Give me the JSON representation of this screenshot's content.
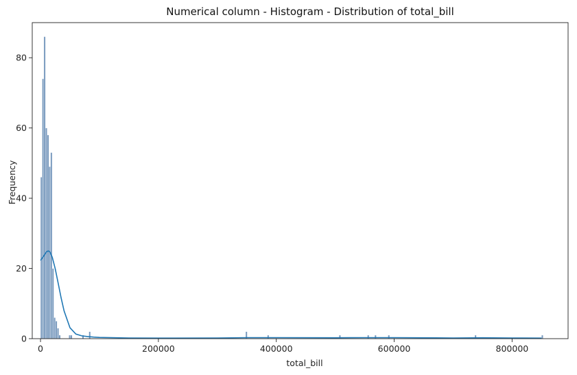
{
  "chart_data": {
    "type": "bar",
    "title": "Numerical column - Histogram - Distribution of total_bill",
    "xlabel": "total_bill",
    "ylabel": "Frequency",
    "xlim": [
      -14000,
      895000
    ],
    "ylim": [
      0,
      90
    ],
    "xticks": [
      0,
      200000,
      400000,
      600000,
      800000
    ],
    "xtick_labels": [
      "0",
      "200000",
      "400000",
      "600000",
      "800000"
    ],
    "yticks": [
      0,
      20,
      40,
      60,
      80
    ],
    "ytick_labels": [
      "0",
      "20",
      "40",
      "60",
      "80"
    ],
    "bin_width": 2830,
    "bins": [
      {
        "x": 0,
        "count": 46
      },
      {
        "x": 2830,
        "count": 74
      },
      {
        "x": 5660,
        "count": 86
      },
      {
        "x": 8490,
        "count": 60
      },
      {
        "x": 11320,
        "count": 58
      },
      {
        "x": 14150,
        "count": 49
      },
      {
        "x": 16980,
        "count": 53
      },
      {
        "x": 19810,
        "count": 20
      },
      {
        "x": 22640,
        "count": 6
      },
      {
        "x": 25470,
        "count": 5
      },
      {
        "x": 28300,
        "count": 3
      },
      {
        "x": 31130,
        "count": 1
      },
      {
        "x": 48110,
        "count": 1
      },
      {
        "x": 50940,
        "count": 1
      },
      {
        "x": 70750,
        "count": 1
      },
      {
        "x": 82070,
        "count": 2
      },
      {
        "x": 347960,
        "count": 2
      },
      {
        "x": 384750,
        "count": 1
      },
      {
        "x": 506440,
        "count": 1
      },
      {
        "x": 554550,
        "count": 1
      },
      {
        "x": 566870,
        "count": 1
      },
      {
        "x": 589510,
        "count": 1
      },
      {
        "x": 736670,
        "count": 1
      },
      {
        "x": 849850,
        "count": 1
      }
    ],
    "kde": {
      "x": [
        0,
        5000,
        10000,
        13000,
        16000,
        20000,
        25000,
        30000,
        35000,
        40000,
        50000,
        60000,
        70000,
        80000,
        90000,
        100000,
        150000,
        200000,
        300000,
        350000,
        400000,
        500000,
        550000,
        600000,
        700000,
        750000,
        800000,
        850000
      ],
      "y": [
        22.3,
        23.4,
        24.7,
        25.0,
        24.7,
        23.2,
        19.9,
        15.8,
        11.6,
        7.9,
        3.1,
        1.3,
        0.8,
        0.6,
        0.45,
        0.35,
        0.2,
        0.15,
        0.2,
        0.3,
        0.3,
        0.25,
        0.3,
        0.3,
        0.2,
        0.25,
        0.2,
        0.15
      ]
    },
    "bar_color": "#4c78a8",
    "kde_color": "#1f77b4",
    "grid": false,
    "legend": "none"
  }
}
